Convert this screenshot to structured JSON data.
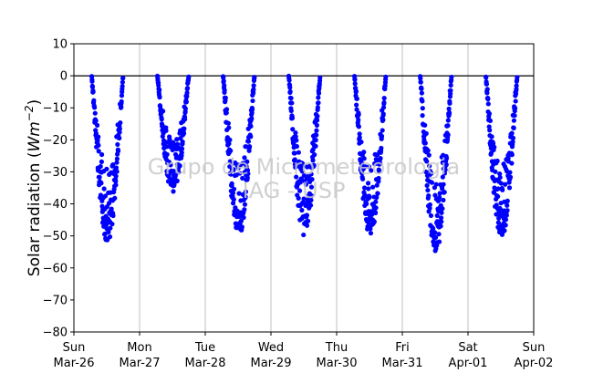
{
  "chart_data": {
    "type": "scatter",
    "ylabel_prefix": "Solar radiation (",
    "ylabel_unit_base": "Wm",
    "ylabel_unit_exp": "−2",
    "ylabel_suffix": ")",
    "ylim": [
      -80,
      10
    ],
    "yticks": [
      10,
      0,
      -10,
      -20,
      -30,
      -40,
      -50,
      -60,
      -70,
      -80
    ],
    "ytick_labels": [
      "10",
      "0",
      "−10",
      "−20",
      "−30",
      "−40",
      "−50",
      "−60",
      "−70",
      "−80"
    ],
    "xlim_days": [
      0,
      7
    ],
    "xticks": [
      {
        "day": "Sun",
        "date": "Mar-26"
      },
      {
        "day": "Mon",
        "date": "Mar-27"
      },
      {
        "day": "Tue",
        "date": "Mar-28"
      },
      {
        "day": "Wed",
        "date": "Mar-29"
      },
      {
        "day": "Thu",
        "date": "Mar-30"
      },
      {
        "day": "Fri",
        "date": "Mar-31"
      },
      {
        "day": "Sat",
        "date": "Apr-01"
      },
      {
        "day": "Sun",
        "date": "Apr-02"
      }
    ],
    "grid": "x-vertical",
    "zero_line": true,
    "marker_color": "#0000ff",
    "watermark_lines": [
      "Grupo de Micrometeorologia",
      "IAG - USP"
    ],
    "series": [
      {
        "marker": "circle",
        "days": [
          {
            "date": "Mar-26",
            "start_hour": 6.5,
            "end_hour": 18.0,
            "min": -52
          },
          {
            "date": "Mar-27",
            "start_hour": 6.5,
            "end_hour": 18.0,
            "min": -37
          },
          {
            "date": "Mar-28",
            "start_hour": 6.5,
            "end_hour": 18.0,
            "min": -50
          },
          {
            "date": "Mar-29",
            "start_hour": 6.5,
            "end_hour": 18.0,
            "min": -50
          },
          {
            "date": "Mar-30",
            "start_hour": 6.5,
            "end_hour": 18.0,
            "min": -50
          },
          {
            "date": "Mar-31",
            "start_hour": 6.5,
            "end_hour": 18.0,
            "min": -55
          },
          {
            "date": "Apr-01",
            "start_hour": 6.5,
            "end_hour": 18.0,
            "min": -51
          }
        ]
      }
    ]
  }
}
